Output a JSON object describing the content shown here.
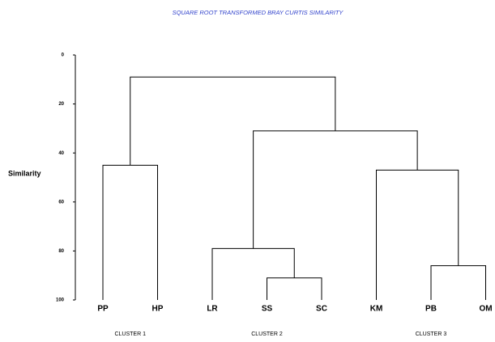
{
  "chart_data": {
    "type": "dendrogram",
    "title": "SQUARE ROOT TRANSFORMED BRAY CURTIS SIMILARITY",
    "y_label": "Similarity",
    "ylim": [
      0,
      100
    ],
    "yticks": [
      0,
      20,
      40,
      60,
      80,
      100
    ],
    "leaves": [
      "PP",
      "HP",
      "LR",
      "SS",
      "SC",
      "KM",
      "PB",
      "OM"
    ],
    "merges": [
      {
        "children": [
          0,
          1
        ],
        "height": 45
      },
      {
        "children": [
          3,
          4
        ],
        "height": 91
      },
      {
        "children": [
          2,
          9
        ],
        "height": 79
      },
      {
        "children": [
          6,
          7
        ],
        "height": 86
      },
      {
        "children": [
          5,
          11
        ],
        "height": 47
      },
      {
        "children": [
          10,
          12
        ],
        "height": 31
      },
      {
        "children": [
          8,
          13
        ],
        "height": 9
      }
    ],
    "groups": [
      {
        "label": "CLUSTER 1",
        "leaves": [
          0,
          1
        ]
      },
      {
        "label": "CLUSTER 2",
        "leaves": [
          2,
          3,
          4
        ]
      },
      {
        "label": "CLUSTER 3",
        "leaves": [
          5,
          6,
          7
        ]
      }
    ],
    "color": "#000000",
    "title_color": "#3344cc"
  }
}
